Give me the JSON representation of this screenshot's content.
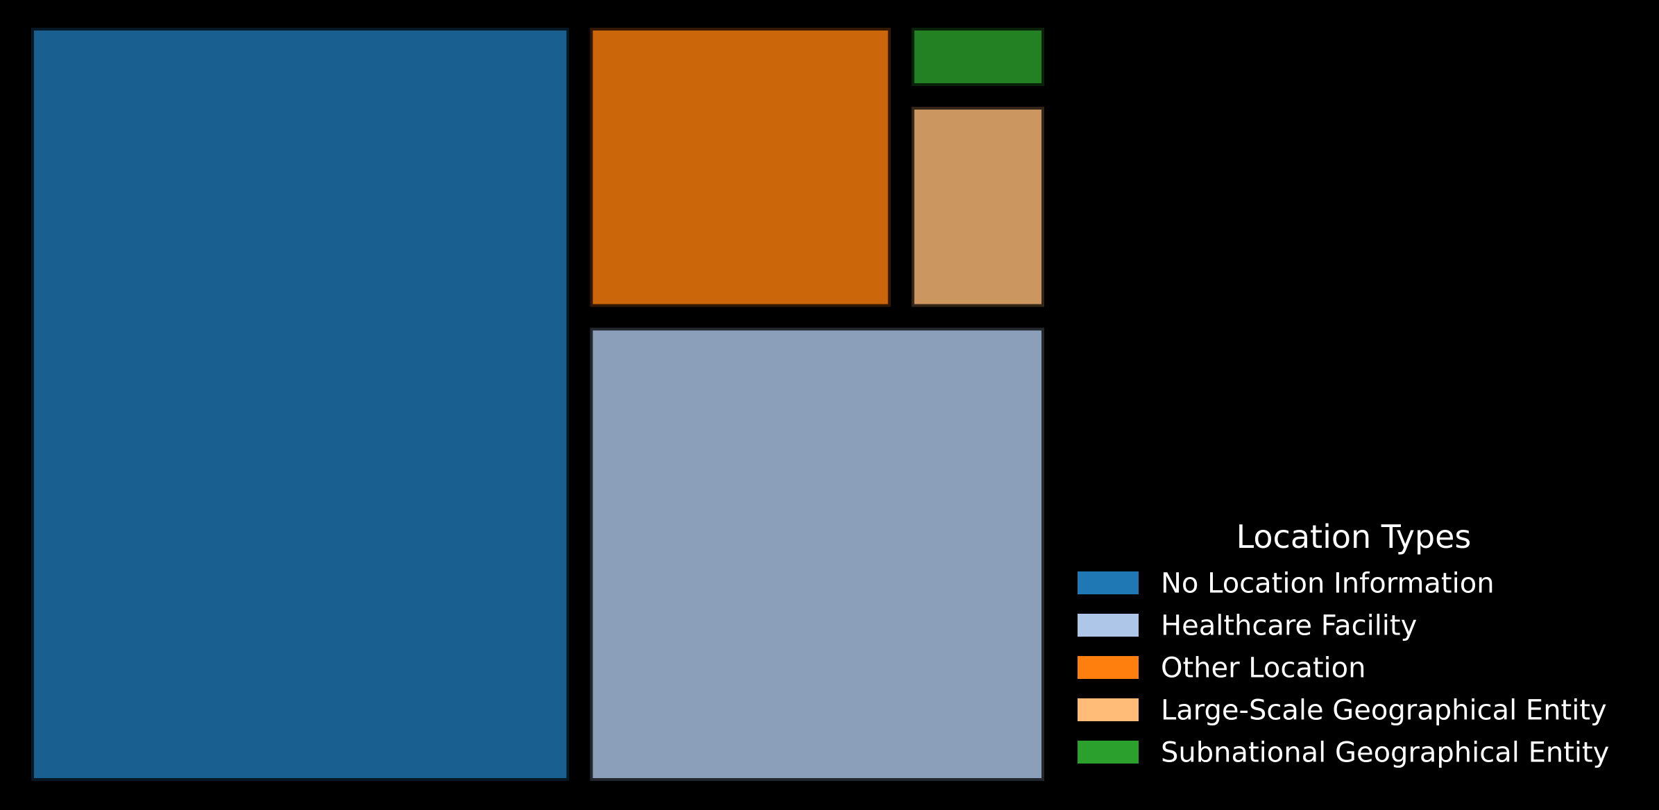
{
  "chart_data": {
    "type": "treemap",
    "title": "",
    "legend": {
      "title": "Location Types",
      "placement": "bottom-right"
    },
    "series": [
      {
        "name": "No Location Information",
        "value": 40.0,
        "color": "#1f77b4"
      },
      {
        "name": "Healthcare Facility",
        "value": 22.0,
        "color": "#aec7e8"
      },
      {
        "name": "Other Location",
        "value": 9.4,
        "color": "#ff7f0e"
      },
      {
        "name": "Large-Scale Geographical Entity",
        "value": 3.2,
        "color": "#ffbb78"
      },
      {
        "name": "Subnational Geographical Entity",
        "value": 0.9,
        "color": "#2ca02c"
      }
    ]
  }
}
